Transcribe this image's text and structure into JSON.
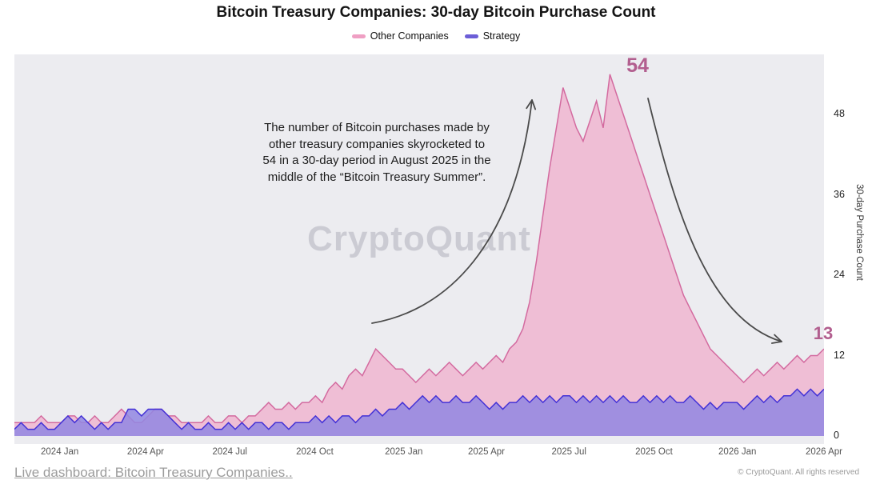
{
  "legend": {
    "items": [
      {
        "label": "Other Companies",
        "color": "#ef9fc3"
      },
      {
        "label": "Strategy",
        "color": "#6c5ed7"
      }
    ]
  },
  "annotation": {
    "text": "The number of Bitcoin purchases made by\nother treasury companies skyrocketed to\n54 in a 30-day period in August 2025 in the\nmiddle of the “Bitcoin Treasury Summer”.",
    "peak_label": "54",
    "end_label": "13",
    "color": "#b25f8f",
    "arrow_color": "#4a4a4a"
  },
  "watermark": "CryptoQuant",
  "footer": {
    "link": "Live dashboard: Bitcoin Treasury Companies..",
    "copyright": "© CryptoQuant. All rights reserved"
  },
  "chart_data": {
    "type": "area",
    "title": "Bitcoin Treasury Companies: 30-day Bitcoin Purchase Count",
    "xlabel": "",
    "ylabel": "30-day Purchase Count",
    "ylim": [
      0,
      58
    ],
    "grid": false,
    "legend_position": "top-center",
    "plot_background": "#ececf0",
    "y_ticks": [
      0,
      12,
      24,
      36,
      48
    ],
    "x_ticks": [
      {
        "label": "2024 Jan",
        "pos": 0.056
      },
      {
        "label": "2024 Apr",
        "pos": 0.162
      },
      {
        "label": "2024 Jul",
        "pos": 0.266
      },
      {
        "label": "2024 Oct",
        "pos": 0.371
      },
      {
        "label": "2025 Jan",
        "pos": 0.481
      },
      {
        "label": "2025 Apr",
        "pos": 0.583
      },
      {
        "label": "2025 Jul",
        "pos": 0.685
      },
      {
        "label": "2025 Oct",
        "pos": 0.79
      },
      {
        "label": "2026 Jan",
        "pos": 0.893
      },
      {
        "label": "2026 Apr",
        "pos": 1.0
      }
    ],
    "series": [
      {
        "name": "Other Companies",
        "fill": "#efb9d1",
        "fill_opacity": 0.9,
        "stroke": "#d36a9f",
        "values": [
          2,
          2,
          2,
          2,
          3,
          2,
          2,
          2,
          3,
          3,
          2,
          2,
          3,
          2,
          2,
          3,
          4,
          3,
          2,
          2,
          3,
          4,
          4,
          3,
          3,
          2,
          2,
          2,
          2,
          3,
          2,
          2,
          3,
          3,
          2,
          3,
          3,
          4,
          5,
          4,
          4,
          5,
          4,
          5,
          5,
          6,
          5,
          7,
          8,
          7,
          9,
          10,
          9,
          11,
          13,
          12,
          11,
          10,
          10,
          9,
          8,
          9,
          10,
          9,
          10,
          11,
          10,
          9,
          10,
          11,
          10,
          11,
          12,
          11,
          13,
          14,
          16,
          20,
          26,
          33,
          40,
          46,
          52,
          49,
          46,
          44,
          47,
          50,
          46,
          54,
          51,
          48,
          45,
          42,
          39,
          36,
          33,
          30,
          27,
          24,
          21,
          19,
          17,
          15,
          13,
          12,
          11,
          10,
          9,
          8,
          9,
          10,
          9,
          10,
          11,
          10,
          11,
          12,
          11,
          12,
          12,
          13
        ]
      },
      {
        "name": "Strategy",
        "fill": "#9287e2",
        "fill_opacity": 0.85,
        "stroke": "#4331d6",
        "values": [
          1,
          2,
          1,
          1,
          2,
          1,
          1,
          2,
          3,
          2,
          3,
          2,
          1,
          2,
          1,
          2,
          2,
          4,
          4,
          3,
          4,
          4,
          4,
          3,
          2,
          1,
          2,
          1,
          1,
          2,
          1,
          1,
          2,
          1,
          2,
          1,
          2,
          2,
          1,
          2,
          2,
          1,
          2,
          2,
          2,
          3,
          2,
          3,
          2,
          3,
          3,
          2,
          3,
          3,
          4,
          3,
          4,
          4,
          5,
          4,
          5,
          6,
          5,
          6,
          5,
          5,
          6,
          5,
          5,
          6,
          5,
          4,
          5,
          4,
          5,
          5,
          6,
          5,
          6,
          5,
          6,
          5,
          6,
          6,
          5,
          6,
          5,
          6,
          5,
          6,
          5,
          6,
          5,
          5,
          6,
          5,
          6,
          5,
          6,
          5,
          5,
          6,
          5,
          4,
          5,
          4,
          5,
          5,
          5,
          4,
          5,
          6,
          5,
          6,
          5,
          6,
          6,
          7,
          6,
          7,
          6,
          7
        ]
      }
    ]
  }
}
